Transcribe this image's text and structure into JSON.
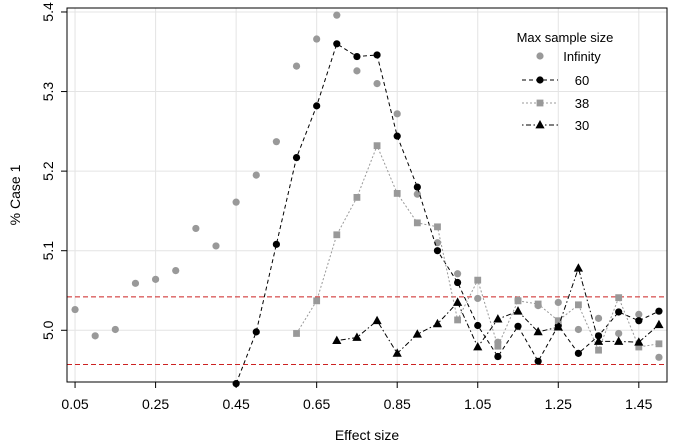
{
  "chart_data": {
    "type": "line",
    "title": "",
    "xlabel": "Effect size",
    "ylabel": "% Case 1",
    "xlim": [
      0.03,
      1.52
    ],
    "ylim": [
      4.935,
      5.405
    ],
    "x_ticks": [
      0.05,
      0.25,
      0.45,
      0.65,
      0.85,
      1.05,
      1.25,
      1.45
    ],
    "x_tick_labels": [
      "0.05",
      "0.25",
      "0.45",
      "0.65",
      "0.85",
      "1.05",
      "1.25",
      "1.45"
    ],
    "y_ticks": [
      5.0,
      5.1,
      5.2,
      5.3,
      5.4
    ],
    "y_tick_labels": [
      "5.0",
      "5.1",
      "5.2",
      "5.3",
      "5.4"
    ],
    "grid": true,
    "legend": {
      "title": "Max sample size",
      "placement": "top-right"
    },
    "reference_lines": [
      {
        "y": 5.042,
        "color": "#cc2222",
        "style": "dashed"
      },
      {
        "y": 4.957,
        "color": "#cc2222",
        "style": "dashed"
      }
    ],
    "series": [
      {
        "name": "Infinity",
        "marker": "circle",
        "line": "none",
        "color": "#999999",
        "x": [
          0.05,
          0.1,
          0.15,
          0.2,
          0.25,
          0.3,
          0.35,
          0.4,
          0.45,
          0.5,
          0.55,
          0.6,
          0.65,
          0.7,
          0.75,
          0.8,
          0.85,
          0.9,
          0.95,
          1.0,
          1.05,
          1.1,
          1.15,
          1.2,
          1.25,
          1.3,
          1.35,
          1.4,
          1.45,
          1.5
        ],
        "y": [
          5.026,
          4.993,
          5.001,
          5.059,
          5.064,
          5.075,
          5.128,
          5.106,
          5.161,
          5.195,
          5.237,
          5.332,
          5.366,
          5.396,
          5.326,
          5.31,
          5.272,
          5.171,
          5.11,
          5.071,
          5.04,
          4.985,
          5.038,
          5.031,
          5.035,
          5.001,
          5.015,
          4.996,
          5.02,
          4.966
        ]
      },
      {
        "name": "60",
        "marker": "circle",
        "line": "dashed",
        "color": "#000000",
        "x": [
          0.45,
          0.5,
          0.55,
          0.6,
          0.65,
          0.7,
          0.75,
          0.8,
          0.85,
          0.9,
          0.95,
          1.0,
          1.05,
          1.1,
          1.15,
          1.2,
          1.25,
          1.3,
          1.35,
          1.4,
          1.45,
          1.5
        ],
        "y": [
          4.933,
          4.998,
          5.108,
          5.217,
          5.282,
          5.36,
          5.344,
          5.346,
          5.244,
          5.18,
          5.1,
          5.06,
          5.006,
          4.967,
          5.005,
          4.961,
          5.006,
          4.971,
          4.993,
          5.023,
          5.012,
          5.024
        ]
      },
      {
        "name": "38",
        "marker": "square",
        "line": "dotted",
        "color": "#999999",
        "x": [
          0.6,
          0.65,
          0.7,
          0.75,
          0.8,
          0.85,
          0.9,
          0.95,
          1.0,
          1.05,
          1.1,
          1.15,
          1.2,
          1.25,
          1.3,
          1.35,
          1.4,
          1.45,
          1.5
        ],
        "y": [
          4.996,
          5.037,
          5.12,
          5.167,
          5.232,
          5.172,
          5.135,
          5.13,
          5.013,
          5.063,
          4.98,
          5.037,
          5.033,
          5.012,
          5.032,
          4.975,
          5.041,
          4.979,
          4.983
        ]
      },
      {
        "name": "30",
        "marker": "triangle",
        "line": "dotdash",
        "color": "#000000",
        "x": [
          0.7,
          0.75,
          0.8,
          0.85,
          0.9,
          0.95,
          1.0,
          1.05,
          1.1,
          1.15,
          1.2,
          1.25,
          1.3,
          1.35,
          1.4,
          1.45,
          1.5
        ],
        "y": [
          4.987,
          4.991,
          5.012,
          4.971,
          4.995,
          5.008,
          5.035,
          4.979,
          5.014,
          5.024,
          4.998,
          5.004,
          5.078,
          4.986,
          4.986,
          4.985,
          5.007
        ]
      }
    ]
  }
}
